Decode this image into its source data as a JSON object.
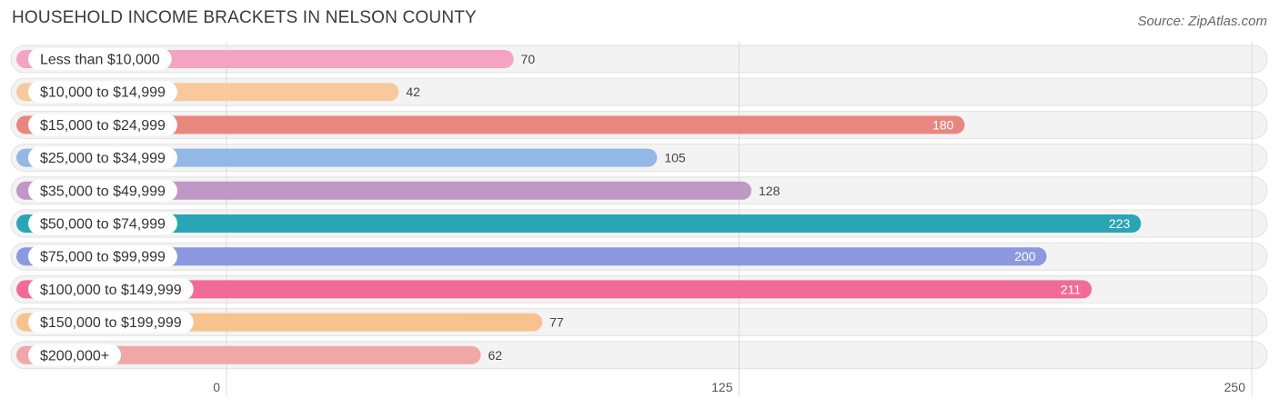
{
  "header": {
    "title": "HOUSEHOLD INCOME BRACKETS IN NELSON COUNTY",
    "source": "Source: ZipAtlas.com"
  },
  "chart_data": {
    "type": "bar",
    "orientation": "horizontal",
    "title": "HOUSEHOLD INCOME BRACKETS IN NELSON COUNTY",
    "categories": [
      "Less than $10,000",
      "$10,000 to $14,999",
      "$15,000 to $24,999",
      "$25,000 to $34,999",
      "$35,000 to $49,999",
      "$50,000 to $74,999",
      "$75,000 to $99,999",
      "$100,000 to $149,999",
      "$150,000 to $199,999",
      "$200,000+"
    ],
    "values": [
      70,
      42,
      180,
      105,
      128,
      223,
      200,
      211,
      77,
      62
    ],
    "colors": [
      "#f4a3c0",
      "#f9c99e",
      "#e8877f",
      "#93b8e6",
      "#bf98c6",
      "#2aa5b5",
      "#8b98e2",
      "#f26b98",
      "#f8c28f",
      "#efa8a6"
    ],
    "xlim": [
      0,
      250
    ],
    "xticks": [
      0,
      125,
      250
    ],
    "grid": true,
    "value_labels_inside_for": [
      180,
      223,
      200,
      211
    ]
  }
}
